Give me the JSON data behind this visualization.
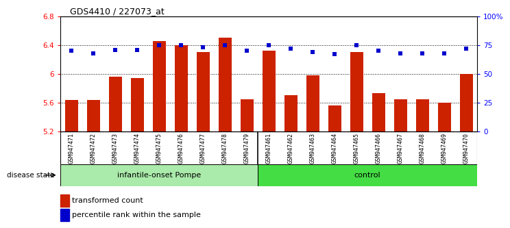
{
  "title": "GDS4410 / 227073_at",
  "samples": [
    "GSM947471",
    "GSM947472",
    "GSM947473",
    "GSM947474",
    "GSM947475",
    "GSM947476",
    "GSM947477",
    "GSM947478",
    "GSM947479",
    "GSM947461",
    "GSM947462",
    "GSM947463",
    "GSM947464",
    "GSM947465",
    "GSM947466",
    "GSM947467",
    "GSM947468",
    "GSM947469",
    "GSM947470"
  ],
  "bar_values": [
    5.64,
    5.64,
    5.96,
    5.94,
    6.46,
    6.4,
    6.3,
    6.5,
    5.65,
    6.32,
    5.7,
    5.98,
    5.56,
    6.3,
    5.73,
    5.65,
    5.65,
    5.6,
    6.0
  ],
  "percentile_values": [
    70,
    68,
    71,
    71,
    75,
    75,
    73,
    75,
    70,
    75,
    72,
    69,
    67,
    75,
    70,
    68,
    68,
    68,
    72
  ],
  "bar_color": "#cc2200",
  "dot_color": "#0000cc",
  "ylim_left": [
    5.2,
    6.8
  ],
  "ylim_right": [
    0,
    100
  ],
  "yticks_left": [
    5.2,
    5.6,
    6.0,
    6.4,
    6.8
  ],
  "ytick_labels_left": [
    "5.2",
    "5.6",
    "6",
    "6.4",
    "6.8"
  ],
  "yticks_right": [
    0,
    25,
    50,
    75,
    100
  ],
  "ytick_labels_right": [
    "0",
    "25",
    "50",
    "75",
    "100%"
  ],
  "group1_label": "infantile-onset Pompe",
  "group2_label": "control",
  "group1_count": 9,
  "group2_count": 10,
  "disease_state_label": "disease state",
  "legend1": "transformed count",
  "legend2": "percentile rank within the sample",
  "bg_color": "#ffffff",
  "plot_bg_color": "#ffffff",
  "xticklabel_bg": "#c8c8c8",
  "group1_color": "#aaeaaa",
  "group2_color": "#44dd44",
  "dotted_lines": [
    5.6,
    6.0,
    6.4
  ]
}
